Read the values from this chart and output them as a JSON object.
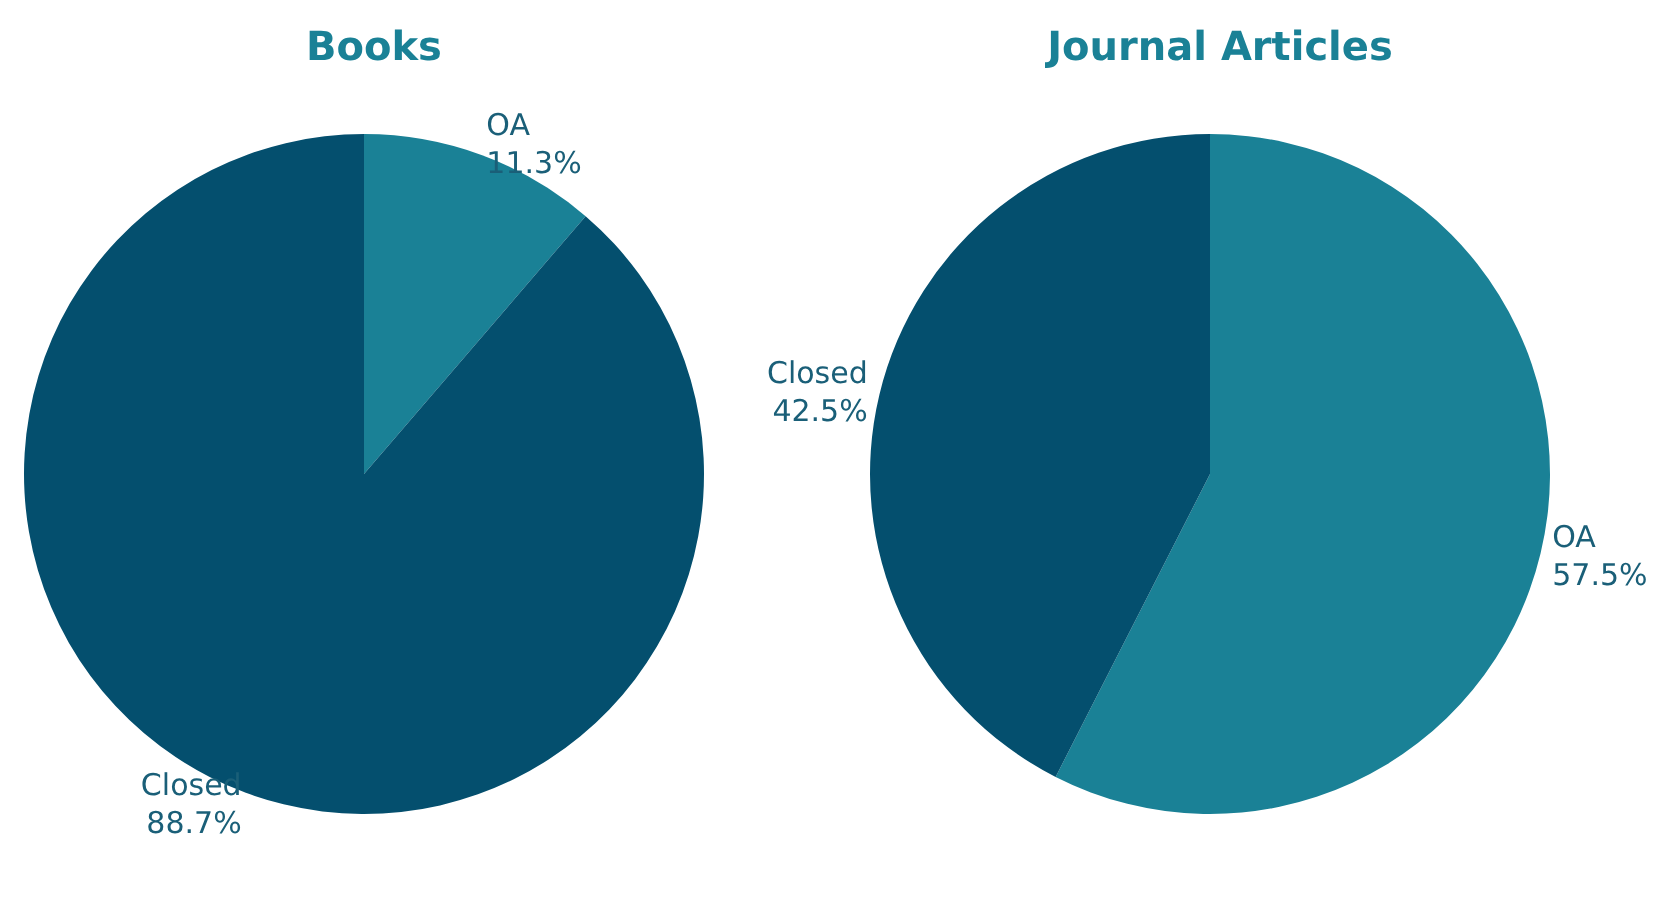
{
  "chart_data": [
    {
      "type": "pie",
      "title": "Books",
      "categories": [
        "OA",
        "Closed"
      ],
      "values": [
        11.3,
        88.7
      ],
      "colors": [
        "#1a8196",
        "#044f6e"
      ],
      "value_labels": [
        "11.3%",
        "88.7%"
      ],
      "legend": false
    },
    {
      "type": "pie",
      "title": "Journal Articles",
      "categories": [
        "OA",
        "Closed"
      ],
      "values": [
        57.5,
        42.5
      ],
      "colors": [
        "#1a8196",
        "#044f6e"
      ],
      "value_labels": [
        "57.5%",
        "42.5%"
      ],
      "legend": false
    }
  ]
}
